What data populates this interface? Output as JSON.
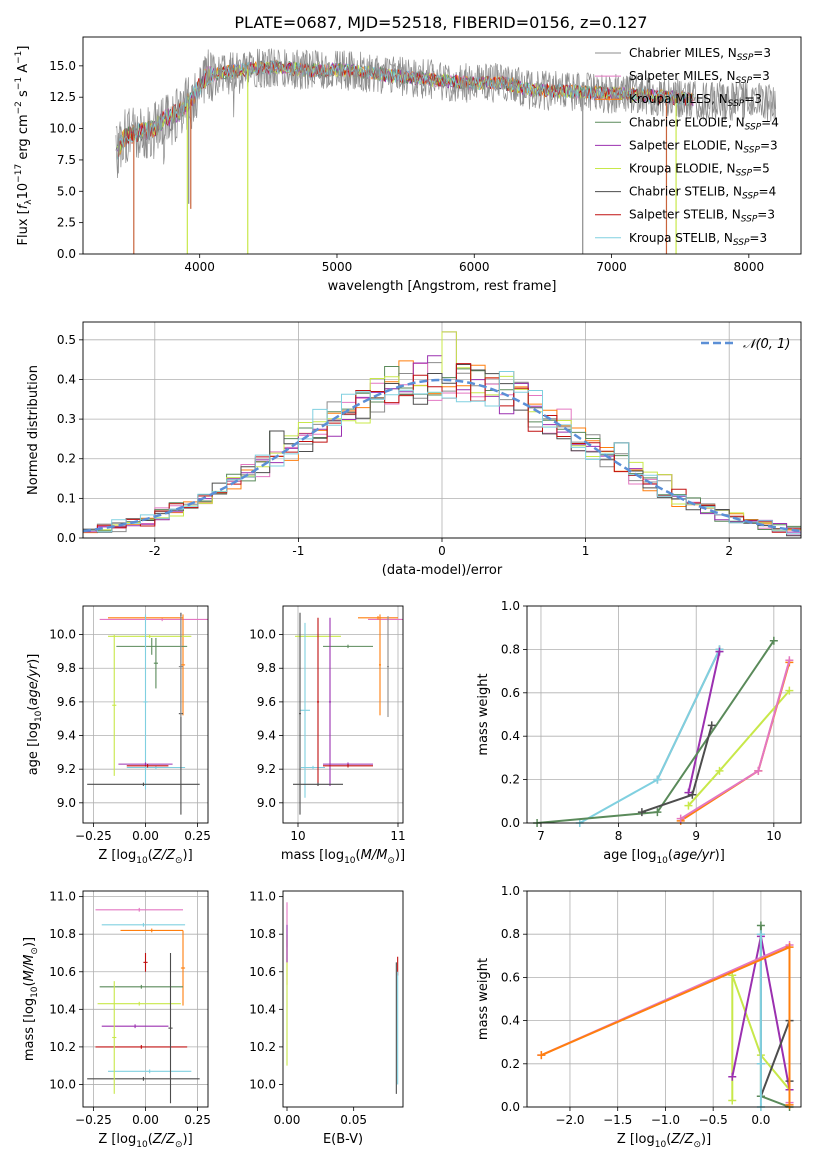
{
  "figure": {
    "title": "PLATE=0687, MJD=52518, FIBERID=0156, z=0.127"
  },
  "models": [
    {
      "name": "Chabrier MILES",
      "nssp": "3",
      "color": "#8c8c8c"
    },
    {
      "name": "Salpeter MILES",
      "nssp": "3",
      "color": "#e377c2"
    },
    {
      "name": "Kroupa MILES",
      "nssp": "3",
      "color": "#ff7f0e"
    },
    {
      "name": "Chabrier ELODIE",
      "nssp": "4",
      "color": "#5a8a5a"
    },
    {
      "name": "Salpeter ELODIE",
      "nssp": "3",
      "color": "#9b30b0"
    },
    {
      "name": "Kroupa ELODIE",
      "nssp": "5",
      "color": "#c8e84a"
    },
    {
      "name": "Chabrier STELIB",
      "nssp": "4",
      "color": "#4d4d4d"
    },
    {
      "name": "Salpeter STELIB",
      "nssp": "3",
      "color": "#c01010"
    },
    {
      "name": "Kroupa STELIB",
      "nssp": "3",
      "color": "#80d0e0"
    }
  ],
  "chart_data": [
    {
      "id": "spectrum",
      "type": "line",
      "xlabel": "wavelength [Angstrom, rest frame]",
      "ylabel": "Flux [f_λ 10^-17 erg cm^-2 s^-1 A^-1]",
      "xlim": [
        3150,
        8380
      ],
      "ylim": [
        0,
        17.3
      ],
      "xticks": [
        4000,
        5000,
        6000,
        7000,
        8000
      ],
      "yticks": [
        0.0,
        2.5,
        5.0,
        7.5,
        10.0,
        12.5,
        15.0
      ],
      "grid": false,
      "legend": "upper right",
      "continuum_x": [
        3390,
        3460,
        3550,
        3650,
        3750,
        3850,
        3950,
        4050,
        4200,
        4400,
        4600,
        4800,
        5000,
        5200,
        5400,
        5600,
        5800,
        6000,
        6200,
        6400,
        6600,
        6800,
        7000,
        7200,
        7400,
        7600,
        7800,
        8000,
        8200
      ],
      "continuum_y": [
        8.0,
        9.4,
        9.7,
        9.9,
        10.8,
        11.3,
        12.5,
        14.2,
        14.5,
        14.8,
        14.9,
        14.6,
        14.7,
        14.5,
        14.2,
        14.0,
        13.8,
        13.6,
        13.7,
        13.1,
        13.0,
        12.9,
        12.8,
        12.7,
        12.5,
        12.3,
        12.2,
        12.2,
        12.1
      ],
      "dropouts": [
        {
          "x": 3520,
          "y": 0.0
        },
        {
          "x": 3910,
          "y": 0.0
        },
        {
          "x": 3920,
          "y": 4.0
        },
        {
          "x": 3935,
          "y": 3.6
        },
        {
          "x": 4350,
          "y": 0.0
        },
        {
          "x": 6790,
          "y": 0.0
        },
        {
          "x": 7400,
          "y": 0.0
        },
        {
          "x": 7470,
          "y": 0.0
        }
      ]
    },
    {
      "id": "residuals",
      "type": "histogram",
      "xlabel": "(data-model)/error",
      "ylabel": "Normed distribution",
      "xlim": [
        -2.5,
        2.5
      ],
      "ylim": [
        0,
        0.545
      ],
      "xticks": [
        -2,
        -1,
        0,
        1,
        2
      ],
      "yticks": [
        0.0,
        0.1,
        0.2,
        0.3,
        0.4,
        0.5
      ],
      "grid": true,
      "bin_width": 0.1,
      "reference_label": "𝒩(0, 1)",
      "reference_color": "#5b8fd6",
      "spikes": [
        {
          "x": -1.15,
          "y": 0.27
        },
        {
          "x": -0.05,
          "y": 0.46
        },
        {
          "x": 0.05,
          "y": 0.52
        },
        {
          "x": 0.15,
          "y": 0.44
        },
        {
          "x": 0.45,
          "y": 0.42
        },
        {
          "x": 0.55,
          "y": 0.39
        },
        {
          "x": 0.95,
          "y": 0.22
        },
        {
          "x": 1.25,
          "y": 0.24
        },
        {
          "x": 1.55,
          "y": 0.16
        }
      ]
    },
    {
      "id": "age-vs-Z",
      "type": "errorbar",
      "xlabel": "Z [log10(Z/Z⊙)]",
      "ylabel": "age [log10(age/yr)]",
      "xlim": [
        -0.3,
        0.3
      ],
      "ylim": [
        8.88,
        10.17
      ],
      "xticks": [
        -0.25,
        0.0,
        0.25
      ],
      "xtick_labels": [
        "−0.25",
        "0.00",
        "0.25"
      ],
      "yticks": [
        9.0,
        9.2,
        9.4,
        9.6,
        9.8,
        10.0
      ],
      "grid": true,
      "points": [
        {
          "model": 1,
          "x": 0.08,
          "xerr": 0.3,
          "y": 10.09,
          "yerr": 0.01
        },
        {
          "model": 2,
          "x": 0.0,
          "xerr": 0.18,
          "y": 10.1,
          "yerr": 0.01
        },
        {
          "model": 2,
          "x": 0.18,
          "xerr": 0.01,
          "y": 9.82,
          "yerr": 0.3
        },
        {
          "model": 3,
          "x": 0.03,
          "xerr": 0.17,
          "y": 9.93,
          "yerr": 0.05
        },
        {
          "model": 3,
          "x": 0.05,
          "xerr": 0.01,
          "y": 9.83,
          "yerr": 0.15
        },
        {
          "model": 5,
          "x": 0.02,
          "xerr": 0.2,
          "y": 9.99,
          "yerr": 0.01
        },
        {
          "model": 5,
          "x": -0.15,
          "xerr": 0.01,
          "y": 9.58,
          "yerr": 0.42
        },
        {
          "model": 8,
          "x": 0.05,
          "xerr": 0.14,
          "y": 9.21,
          "yerr": 0.01
        },
        {
          "model": 8,
          "x": 0.0,
          "xerr": 0.01,
          "y": 9.6,
          "yerr": 0.52
        },
        {
          "model": 4,
          "x": 0.0,
          "xerr": 0.13,
          "y": 9.23,
          "yerr": 0.01
        },
        {
          "model": 7,
          "x": 0.01,
          "xerr": 0.1,
          "y": 9.22,
          "yerr": 0.01
        },
        {
          "model": 6,
          "x": -0.01,
          "xerr": 0.27,
          "y": 9.11,
          "yerr": 0.01
        },
        {
          "model": 6,
          "x": 0.17,
          "xerr": 0.01,
          "y": 9.53,
          "yerr": 0.6
        },
        {
          "model": 0,
          "x": 0.17,
          "xerr": 0.01,
          "y": 9.81,
          "yerr": 0.3
        }
      ]
    },
    {
      "id": "age-vs-mass",
      "type": "errorbar",
      "xlabel": "mass [log10(M/M⊙)]",
      "ylabel": "",
      "xlim": [
        9.85,
        11.05
      ],
      "ylim": [
        8.88,
        10.17
      ],
      "xticks": [
        10,
        11
      ],
      "yticks": [
        9.0,
        9.2,
        9.4,
        9.6,
        9.8,
        10.0
      ],
      "grid": true,
      "points": [
        {
          "model": 1,
          "x": 10.9,
          "xerr": 0.2,
          "y": 10.09,
          "yerr": 0.01
        },
        {
          "model": 2,
          "x": 10.8,
          "xerr": 0.2,
          "y": 10.1,
          "yerr": 0.01
        },
        {
          "model": 2,
          "x": 10.82,
          "xerr": 0.01,
          "y": 9.82,
          "yerr": 0.3
        },
        {
          "model": 3,
          "x": 10.5,
          "xerr": 0.25,
          "y": 9.93,
          "yerr": 0.01
        },
        {
          "model": 5,
          "x": 10.2,
          "xerr": 0.23,
          "y": 9.99,
          "yerr": 0.01
        },
        {
          "model": 8,
          "x": 10.07,
          "xerr": 0.05,
          "y": 9.55,
          "yerr": 0.52
        },
        {
          "model": 8,
          "x": 10.15,
          "xerr": 0.12,
          "y": 9.21,
          "yerr": 0.01
        },
        {
          "model": 4,
          "x": 10.5,
          "xerr": 0.25,
          "y": 9.23,
          "yerr": 0.01
        },
        {
          "model": 4,
          "x": 10.32,
          "xerr": 0.01,
          "y": 9.6,
          "yerr": 0.5
        },
        {
          "model": 7,
          "x": 10.5,
          "xerr": 0.25,
          "y": 9.22,
          "yerr": 0.01
        },
        {
          "model": 7,
          "x": 10.2,
          "xerr": 0.01,
          "y": 9.6,
          "yerr": 0.5
        },
        {
          "model": 6,
          "x": 10.2,
          "xerr": 0.25,
          "y": 9.11,
          "yerr": 0.01
        },
        {
          "model": 6,
          "x": 10.02,
          "xerr": 0.01,
          "y": 9.53,
          "yerr": 0.6
        },
        {
          "model": 0,
          "x": 10.9,
          "xerr": 0.01,
          "y": 9.81,
          "yerr": 0.3
        }
      ]
    },
    {
      "id": "weight-vs-age",
      "type": "line",
      "xlabel": "age [log10(age/yr)]",
      "ylabel": "mass weight",
      "xlim": [
        6.82,
        10.35
      ],
      "ylim": [
        0,
        1.0
      ],
      "xticks": [
        7,
        8,
        9,
        10
      ],
      "yticks": [
        0.0,
        0.2,
        0.4,
        0.6,
        0.8,
        1.0
      ],
      "grid": true,
      "series": [
        {
          "model": 0,
          "x": [
            8.5,
            9.3
          ],
          "y": [
            0.2,
            0.8
          ]
        },
        {
          "model": 8,
          "x": [
            7.5,
            8.5,
            9.3
          ],
          "y": [
            0.0,
            0.2,
            0.8
          ]
        },
        {
          "model": 4,
          "x": [
            8.9,
            9.3
          ],
          "y": [
            0.14,
            0.79
          ]
        },
        {
          "model": 3,
          "x": [
            6.95,
            8.5,
            10.0
          ],
          "y": [
            0.0,
            0.05,
            0.84
          ]
        },
        {
          "model": 6,
          "x": [
            8.3,
            8.95,
            9.2
          ],
          "y": [
            0.05,
            0.13,
            0.45
          ]
        },
        {
          "model": 5,
          "x": [
            8.9,
            9.3,
            10.2
          ],
          "y": [
            0.08,
            0.24,
            0.61
          ]
        },
        {
          "model": 2,
          "x": [
            8.8,
            9.8,
            10.2
          ],
          "y": [
            0.01,
            0.24,
            0.74
          ]
        },
        {
          "model": 1,
          "x": [
            8.8,
            9.8,
            10.2
          ],
          "y": [
            0.02,
            0.24,
            0.75
          ]
        }
      ]
    },
    {
      "id": "mass-vs-Z",
      "type": "errorbar",
      "xlabel": "Z [log10(Z/Z⊙)]",
      "ylabel": "mass [log10(M/M⊙)]",
      "xlim": [
        -0.3,
        0.3
      ],
      "ylim": [
        9.88,
        11.03
      ],
      "xticks": [
        -0.25,
        0.0,
        0.25
      ],
      "xtick_labels": [
        "−0.25",
        "0.00",
        "0.25"
      ],
      "yticks": [
        10.0,
        10.2,
        10.4,
        10.6,
        10.8,
        11.0
      ],
      "grid": true,
      "points": [
        {
          "model": 1,
          "x": -0.03,
          "xerr": 0.21,
          "y": 10.93,
          "yerr": 0.01
        },
        {
          "model": 8,
          "x": -0.01,
          "xerr": 0.2,
          "y": 10.85,
          "yerr": 0.01
        },
        {
          "model": 2,
          "x": 0.03,
          "xerr": 0.15,
          "y": 10.82,
          "yerr": 0.01
        },
        {
          "model": 2,
          "x": 0.18,
          "xerr": 0.01,
          "y": 10.62,
          "yerr": 0.2
        },
        {
          "model": 3,
          "x": -0.02,
          "xerr": 0.2,
          "y": 10.52,
          "yerr": 0.01
        },
        {
          "model": 5,
          "x": -0.03,
          "xerr": 0.2,
          "y": 10.43,
          "yerr": 0.01
        },
        {
          "model": 7,
          "x": 0.0,
          "xerr": 0.01,
          "y": 10.65,
          "yerr": 0.05
        },
        {
          "model": 4,
          "x": -0.05,
          "xerr": 0.16,
          "y": 10.31,
          "yerr": 0.01
        },
        {
          "model": 7,
          "x": -0.02,
          "xerr": 0.22,
          "y": 10.2,
          "yerr": 0.01
        },
        {
          "model": 8,
          "x": 0.02,
          "xerr": 0.2,
          "y": 10.07,
          "yerr": 0.01
        },
        {
          "model": 6,
          "x": -0.01,
          "xerr": 0.27,
          "y": 10.03,
          "yerr": 0.01
        },
        {
          "model": 6,
          "x": 0.12,
          "xerr": 0.01,
          "y": 10.3,
          "yerr": 0.4
        },
        {
          "model": 5,
          "x": -0.15,
          "xerr": 0.01,
          "y": 10.25,
          "yerr": 0.3
        }
      ]
    },
    {
      "id": "mass-vs-EBV",
      "type": "errorbar",
      "xlabel": "E(B-V)",
      "ylabel": "",
      "xlim": [
        -0.003,
        0.087
      ],
      "ylim": [
        9.88,
        11.03
      ],
      "xticks": [
        0.0,
        0.05
      ],
      "xtick_labels": [
        "0.00",
        "0.05"
      ],
      "yticks": [
        10.0,
        10.2,
        10.4,
        10.6,
        10.8,
        11.0
      ],
      "grid": false,
      "points": [
        {
          "model": 1,
          "x": 0.0,
          "xerr": 0.0,
          "y": 10.85,
          "yerr": 0.12
        },
        {
          "model": 2,
          "x": 0.0,
          "xerr": 0.0,
          "y": 10.65,
          "yerr": 0.12
        },
        {
          "model": 5,
          "x": 0.0,
          "xerr": 0.0,
          "y": 10.45,
          "yerr": 0.35
        },
        {
          "model": 4,
          "x": 0.0,
          "xerr": 0.0,
          "y": 10.75,
          "yerr": 0.1
        },
        {
          "model": 7,
          "x": 0.083,
          "xerr": 0.0,
          "y": 10.63,
          "yerr": 0.05
        },
        {
          "model": 6,
          "x": 0.082,
          "xerr": 0.0,
          "y": 10.3,
          "yerr": 0.35
        },
        {
          "model": 8,
          "x": 0.083,
          "xerr": 0.0,
          "y": 10.3,
          "yerr": 0.3
        }
      ]
    },
    {
      "id": "weight-vs-Z",
      "type": "line",
      "xlabel": "Z [log10(Z/Z⊙)]",
      "ylabel": "mass weight",
      "xlim": [
        -2.45,
        0.42
      ],
      "ylim": [
        0,
        1.0
      ],
      "xticks": [
        -2.0,
        -1.5,
        -1.0,
        -0.5,
        0.0
      ],
      "xtick_labels": [
        "−2.0",
        "−1.5",
        "−1.0",
        "−0.5",
        "0.0"
      ],
      "yticks": [
        0.0,
        0.2,
        0.4,
        0.6,
        0.8,
        1.0
      ],
      "grid": true,
      "series": [
        {
          "model": 5,
          "x": [
            -0.3,
            -0.3,
            0.0,
            0.3
          ],
          "y": [
            0.03,
            0.61,
            0.24,
            0.08
          ]
        },
        {
          "model": 4,
          "x": [
            -0.3,
            0.0,
            0.3
          ],
          "y": [
            0.14,
            0.79,
            0.08
          ]
        },
        {
          "model": 6,
          "x": [
            0.0,
            0.3,
            0.3
          ],
          "y": [
            0.05,
            0.4,
            0.12
          ]
        },
        {
          "model": 3,
          "x": [
            0.0,
            0.0,
            0.3
          ],
          "y": [
            0.84,
            0.05,
            0.0
          ]
        },
        {
          "model": 0,
          "x": [
            0.0,
            0.0
          ],
          "y": [
            0.8,
            0.2
          ]
        },
        {
          "model": 8,
          "x": [
            0.0,
            0.0,
            0.0
          ],
          "y": [
            0.8,
            0.2,
            0.0
          ]
        },
        {
          "model": 1,
          "x": [
            -2.3,
            0.3,
            0.3
          ],
          "y": [
            0.24,
            0.75,
            0.02
          ]
        },
        {
          "model": 2,
          "x": [
            -2.3,
            0.3,
            0.3
          ],
          "y": [
            0.24,
            0.74,
            0.01
          ]
        }
      ]
    }
  ]
}
